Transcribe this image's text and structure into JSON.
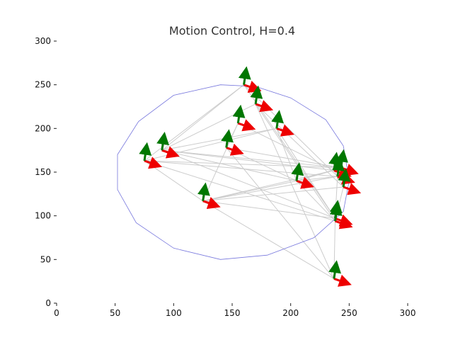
{
  "chart_data": {
    "type": "scatter",
    "title": "Motion Control, H=0.4",
    "xlabel": "",
    "ylabel": "",
    "xlim": [
      0,
      300
    ],
    "ylim": [
      0,
      300
    ],
    "xticks": [
      "0",
      "50",
      "100",
      "150",
      "200",
      "250",
      "300"
    ],
    "yticks": [
      "0",
      "50",
      "100",
      "150",
      "200",
      "250",
      "300"
    ],
    "grid": false,
    "legend": "none",
    "boundary": [
      [
        140,
        50
      ],
      [
        180,
        55
      ],
      [
        220,
        75
      ],
      [
        245,
        105
      ],
      [
        250,
        140
      ],
      [
        245,
        180
      ],
      [
        230,
        210
      ],
      [
        200,
        235
      ],
      [
        170,
        248
      ],
      [
        140,
        250
      ],
      [
        100,
        238
      ],
      [
        70,
        208
      ],
      [
        52,
        170
      ],
      [
        52,
        130
      ],
      [
        68,
        92
      ],
      [
        100,
        63
      ]
    ],
    "agents": [
      [
        160,
        250
      ],
      [
        170,
        228
      ],
      [
        155,
        206
      ],
      [
        188,
        200
      ],
      [
        145,
        178
      ],
      [
        90,
        175
      ],
      [
        75,
        163
      ],
      [
        237,
        152
      ],
      [
        243,
        155
      ],
      [
        240,
        145
      ],
      [
        205,
        140
      ],
      [
        245,
        133
      ],
      [
        125,
        117
      ],
      [
        238,
        97
      ],
      [
        238,
        94
      ],
      [
        237,
        28
      ]
    ],
    "links": [
      [
        5,
        0
      ],
      [
        5,
        1
      ],
      [
        5,
        8
      ],
      [
        5,
        7
      ],
      [
        5,
        10
      ],
      [
        5,
        13
      ],
      [
        6,
        12
      ],
      [
        6,
        8
      ],
      [
        6,
        9
      ],
      [
        6,
        3
      ],
      [
        6,
        14
      ],
      [
        0,
        13
      ],
      [
        0,
        9
      ],
      [
        1,
        14
      ],
      [
        1,
        11
      ],
      [
        1,
        15
      ],
      [
        2,
        12
      ],
      [
        2,
        7
      ],
      [
        2,
        4
      ],
      [
        3,
        13
      ],
      [
        3,
        10
      ],
      [
        3,
        5
      ],
      [
        4,
        8
      ],
      [
        4,
        10
      ],
      [
        4,
        15
      ],
      [
        12,
        10
      ],
      [
        12,
        9
      ],
      [
        12,
        13
      ],
      [
        12,
        11
      ],
      [
        12,
        15
      ],
      [
        10,
        14
      ],
      [
        10,
        7
      ],
      [
        10,
        8
      ],
      [
        7,
        11
      ],
      [
        13,
        9
      ],
      [
        9,
        10
      ],
      [
        11,
        14
      ],
      [
        0,
        6
      ],
      [
        7,
        12
      ],
      [
        14,
        15
      ]
    ],
    "arrow_x_direction": [
      1,
      -0.35
    ],
    "arrow_y_direction": [
      0.15,
      1
    ],
    "colors": {
      "boundary": "#7777dd",
      "links": "#cccccc",
      "heading_x": "#ee0000",
      "heading_y": "#007700",
      "axis": "#222222"
    }
  }
}
